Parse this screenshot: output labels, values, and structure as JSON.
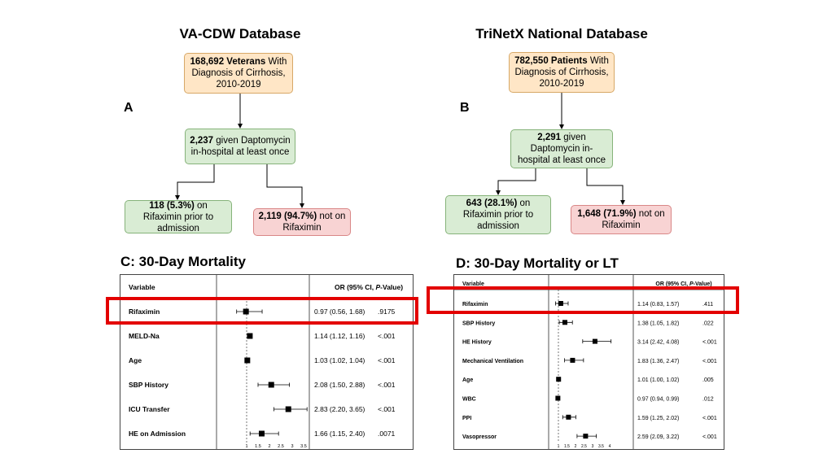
{
  "panel_a": {
    "title": "VA-CDW Database",
    "letter": "A",
    "box_top": {
      "bold": "168,692 Veterans",
      "rest": " With Diagnosis of Cirrhosis, 2010-2019"
    },
    "box_mid": {
      "bold": "2,237",
      "rest": " given Daptomycin in-hospital at least once"
    },
    "box_left": {
      "bold": "118 (5.3%)",
      "rest": " on Rifaximin prior to admission"
    },
    "box_right": {
      "bold": "2,119 (94.7%)",
      "rest": " not on Rifaximin"
    }
  },
  "panel_b": {
    "title": "TriNetX National Database",
    "letter": "B",
    "box_top": {
      "bold": "782,550 Patients",
      "rest": " With Diagnosis of Cirrhosis, 2010-2019"
    },
    "box_mid": {
      "bold": "2,291",
      "rest": " given Daptomycin in-hospital at least once"
    },
    "box_left": {
      "bold": "643 (28.1%)",
      "rest": " on Rifaximin prior to admission"
    },
    "box_right": {
      "bold": "1,648 (71.9%)",
      "rest": " not on Rifaximin"
    }
  },
  "panel_c": {
    "title": "C: 30-Day Mortality",
    "header_variable": "Variable",
    "header_or": "OR (95% CI, ",
    "header_p": "P",
    "header_tail": "-Value)",
    "rows": [
      {
        "variable": "Rifaximin",
        "or": 0.97,
        "lo": 0.56,
        "hi": 1.68,
        "or_text": "0.97 (0.56, 1.68)",
        "p": ".9175"
      },
      {
        "variable": "MELD-Na",
        "or": 1.14,
        "lo": 1.12,
        "hi": 1.16,
        "or_text": "1.14 (1.12, 1.16)",
        "p": "<.001"
      },
      {
        "variable": "Age",
        "or": 1.03,
        "lo": 1.02,
        "hi": 1.04,
        "or_text": "1.03 (1.02, 1.04)",
        "p": "<.001"
      },
      {
        "variable": "SBP History",
        "or": 2.08,
        "lo": 1.5,
        "hi": 2.88,
        "or_text": "2.08 (1.50, 2.88)",
        "p": "<.001"
      },
      {
        "variable": "ICU Transfer",
        "or": 2.83,
        "lo": 2.2,
        "hi": 3.65,
        "or_text": "2.83 (2.20, 3.65)",
        "p": "<.001"
      },
      {
        "variable": "HE on Admission",
        "or": 1.66,
        "lo": 1.15,
        "hi": 2.4,
        "or_text": "1.66 (1.15, 2.40)",
        "p": ".0071"
      }
    ],
    "ticks": [
      "1",
      "1.5",
      "2",
      "2.5",
      "3",
      "3.5"
    ]
  },
  "panel_d": {
    "title": "D: 30-Day Mortality or LT",
    "header_variable": "Variable",
    "header_or": "OR (95% CI, ",
    "header_p": "P",
    "header_tail": "-Value)",
    "rows": [
      {
        "variable": "Rifaximin",
        "or": 1.14,
        "lo": 0.83,
        "hi": 1.57,
        "or_text": "1.14 (0.83, 1.57)",
        "p": ".411"
      },
      {
        "variable": "SBP History",
        "or": 1.38,
        "lo": 1.05,
        "hi": 1.82,
        "or_text": "1.38 (1.05, 1.82)",
        "p": ".022"
      },
      {
        "variable": "HE History",
        "or": 3.14,
        "lo": 2.42,
        "hi": 4.08,
        "or_text": "3.14 (2.42, 4.08)",
        "p": "<.001"
      },
      {
        "variable": "Mechanical Ventilation",
        "or": 1.83,
        "lo": 1.36,
        "hi": 2.47,
        "or_text": "1.83 (1.36, 2.47)",
        "p": "<.001"
      },
      {
        "variable": "Age",
        "or": 1.01,
        "lo": 1.0,
        "hi": 1.02,
        "or_text": "1.01 (1.00, 1.02)",
        "p": ".005"
      },
      {
        "variable": "WBC",
        "or": 0.97,
        "lo": 0.94,
        "hi": 0.99,
        "or_text": "0.97 (0.94, 0.99)",
        "p": ".012"
      },
      {
        "variable": "PPI",
        "or": 1.59,
        "lo": 1.25,
        "hi": 2.02,
        "or_text": "1.59 (1.25, 2.02)",
        "p": "<.001"
      },
      {
        "variable": "Vasopressor",
        "or": 2.59,
        "lo": 2.09,
        "hi": 3.22,
        "or_text": "2.59 (2.09, 3.22)",
        "p": "<.001"
      }
    ],
    "ticks": [
      "1",
      "1.5",
      "2",
      "2.5",
      "3",
      "3.5",
      "4"
    ]
  },
  "colors": {
    "orange_fill": "#ffe6c6",
    "green_fill": "#d9ecd4",
    "red_fill": "#f8d3d3",
    "highlight": "#e30000"
  }
}
